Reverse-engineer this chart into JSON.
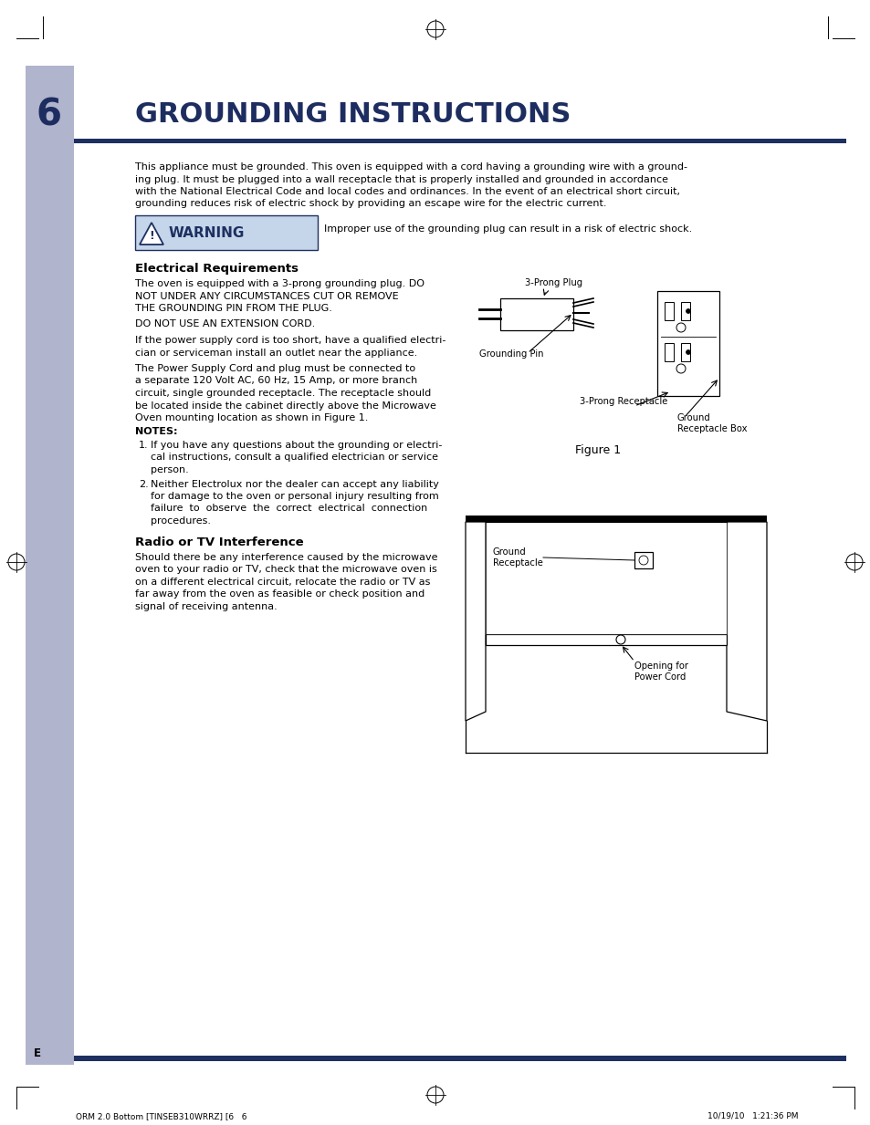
{
  "bg_color": "#ffffff",
  "sidebar_color": "#b0b4cc",
  "header_bar_color": "#1e3060",
  "page_number": "6",
  "title": "GROUNDING INSTRUCTIONS",
  "warning_bg": "#c5d5ea",
  "warning_border": "#1e3060",
  "section1_title": "Electrical Requirements",
  "section2_title": "Radio or TV Interference",
  "figure1_label": "Figure 1",
  "footer_left": "ORM 2.0 Bottom [TINSEB310WRRZ] [6   6",
  "footer_right": "10/19/10   1:21:36 PM",
  "page_letter": "E",
  "intro_lines": [
    "This appliance must be grounded. This oven is equipped with a cord having a grounding wire with a ground-",
    "ing plug. It must be plugged into a wall receptacle that is properly installed and grounded in accordance",
    "with the National Electrical Code and local codes and ordinances. In the event of an electrical short circuit,",
    "grounding reduces risk of electric shock by providing an escape wire for the electric current."
  ],
  "para1_lines": [
    "The oven is equipped with a 3-prong grounding plug. DO",
    "NOT UNDER ANY CIRCUMSTANCES CUT OR REMOVE",
    "THE GROUNDING PIN FROM THE PLUG."
  ],
  "para2": "DO NOT USE AN EXTENSION CORD.",
  "para3_lines": [
    "If the power supply cord is too short, have a qualified electri-",
    "cian or serviceman install an outlet near the appliance."
  ],
  "para4_lines": [
    "The Power Supply Cord and plug must be connected to",
    "a separate 120 Volt AC, 60 Hz, 15 Amp, or more branch",
    "circuit, single grounded receptacle. The receptacle should",
    "be located inside the cabinet directly above the Microwave",
    "Oven mounting location as shown in Figure 1."
  ],
  "notes_label": "NOTES:",
  "note1_lines": [
    "If you have any questions about the grounding or electri-",
    "cal instructions, consult a qualified electrician or service",
    "person."
  ],
  "note2_lines": [
    "Neither Electrolux nor the dealer can accept any liability",
    "for damage to the oven or personal injury resulting from",
    "failure  to  observe  the  correct  electrical  connection",
    "procedures."
  ],
  "radio_lines": [
    "Should there be any interference caused by the microwave",
    "oven to your radio or TV, check that the microwave oven is",
    "on a different electrical circuit, relocate the radio or TV as",
    "far away from the oven as feasible or check position and",
    "signal of receiving antenna."
  ]
}
